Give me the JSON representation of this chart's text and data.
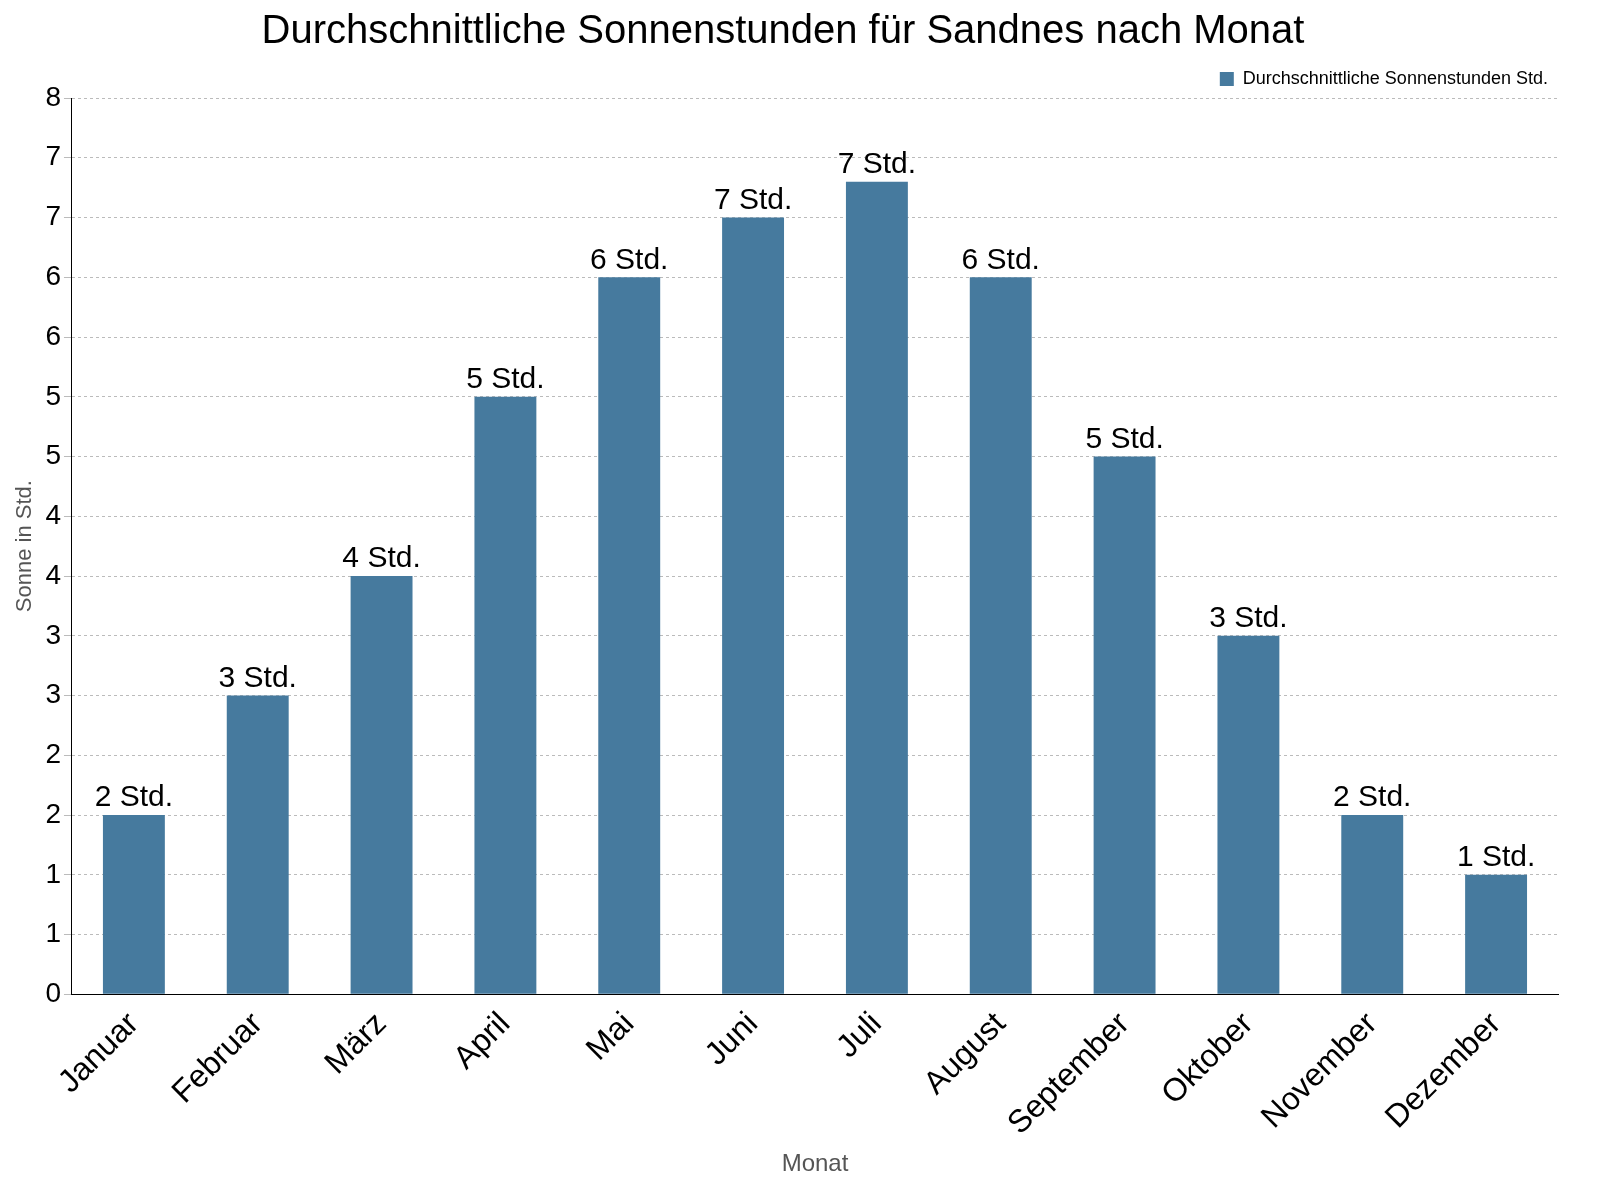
{
  "chart_data": {
    "type": "bar",
    "title": "Durchschnittliche Sonnenstunden für Sandnes nach Monat",
    "xlabel": "Monat",
    "ylabel": "Sonne in Std.",
    "categories": [
      "Januar",
      "Februar",
      "März",
      "April",
      "Mai",
      "Juni",
      "Juli",
      "August",
      "September",
      "Oktober",
      "November",
      "Dezember"
    ],
    "series": [
      {
        "name": "Durchschnittliche Sonnenstunden Std.",
        "color": "#467a9e",
        "values": [
          1.5,
          2.5,
          3.5,
          5.0,
          6.0,
          6.5,
          6.8,
          6.0,
          4.5,
          3.0,
          1.5,
          1.0
        ],
        "value_labels": [
          "2 Std.",
          "3 Std.",
          "4 Std.",
          "5 Std.",
          "6 Std.",
          "7 Std.",
          "7 Std.",
          "6 Std.",
          "5 Std.",
          "3 Std.",
          "2 Std.",
          "1 Std."
        ]
      }
    ],
    "ylim": [
      0,
      7.5
    ],
    "yticks": [
      0,
      {
        "value": 0.5,
        "label": "1"
      },
      1,
      {
        "value": 1.5,
        "label": "2"
      },
      2,
      {
        "value": 2.5,
        "label": "3"
      },
      3,
      {
        "value": 3.5,
        "label": "4"
      },
      4,
      {
        "value": 4.5,
        "label": "5"
      },
      5,
      {
        "value": 5.5,
        "label": "6"
      },
      6,
      {
        "value": 6.5,
        "label": "7"
      },
      7,
      {
        "value": 7.5,
        "label": "8"
      }
    ],
    "grid": "y",
    "legend": "top right"
  }
}
